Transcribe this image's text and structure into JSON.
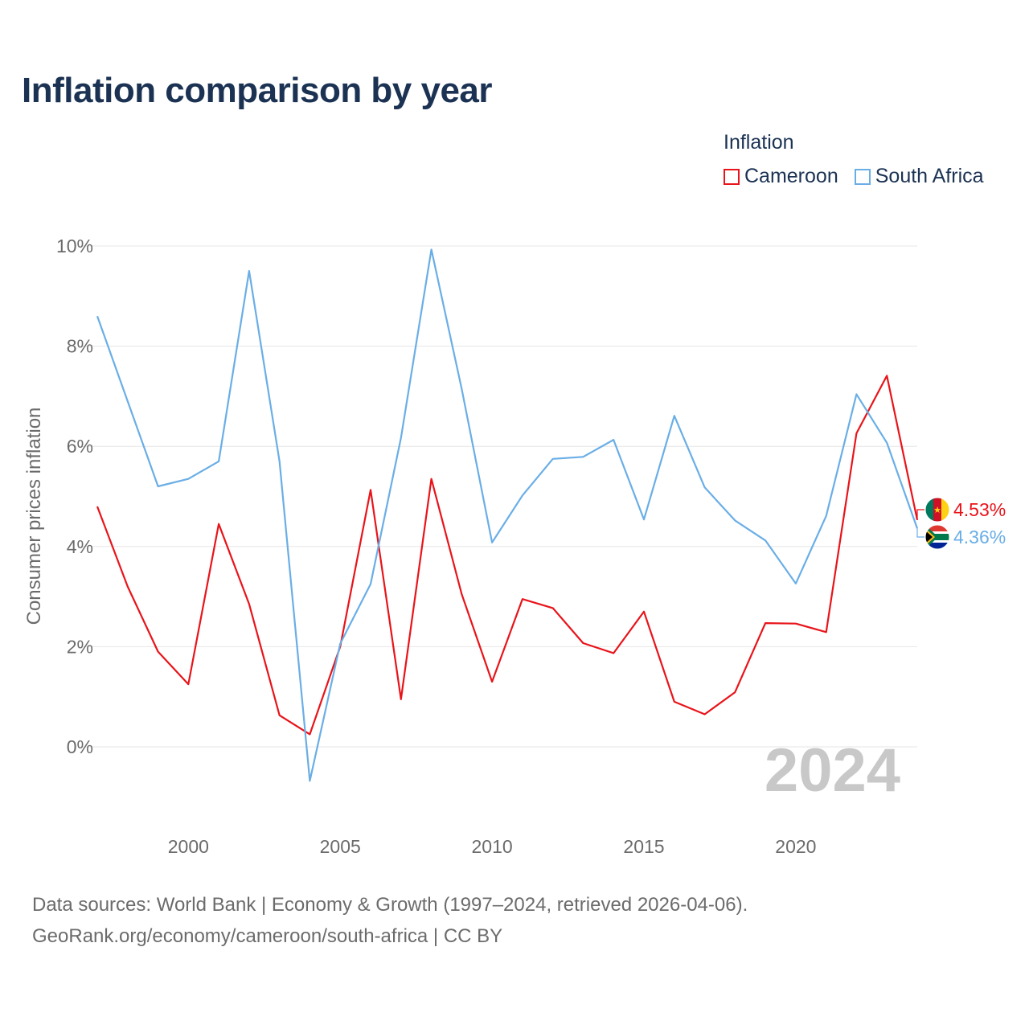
{
  "colors": {
    "cameroon": "#e8141a",
    "south_africa": "#6aaee6",
    "grid": "#e6e6e6",
    "axis_text": "#6b6b6b",
    "watermark": "#c8c8c8",
    "title": "#1b3253"
  },
  "chart_data": {
    "type": "line",
    "title": "Inflation comparison by year",
    "xlabel": "",
    "ylabel": "Consumer prices inflation",
    "legend_title": "Inflation",
    "legend_position": "top-right",
    "grid": true,
    "x": [
      1997,
      1998,
      1999,
      2000,
      2001,
      2002,
      2003,
      2004,
      2005,
      2006,
      2007,
      2008,
      2009,
      2010,
      2011,
      2012,
      2013,
      2014,
      2015,
      2016,
      2017,
      2018,
      2019,
      2020,
      2021,
      2022,
      2023,
      2024
    ],
    "xlim": [
      1997,
      2024
    ],
    "ylim": [
      -1.5,
      10
    ],
    "x_ticks": [
      2000,
      2005,
      2010,
      2015,
      2020
    ],
    "y_ticks": [
      0,
      2,
      4,
      6,
      8,
      10
    ],
    "y_tick_labels": [
      "0%",
      "2%",
      "4%",
      "6%",
      "8%",
      "10%"
    ],
    "series": [
      {
        "key": "cameroon",
        "name": "Cameroon",
        "values": [
          4.8,
          3.2,
          1.9,
          1.25,
          4.45,
          2.85,
          0.63,
          0.25,
          2.0,
          5.13,
          0.95,
          5.35,
          3.05,
          1.3,
          2.95,
          2.77,
          2.07,
          1.87,
          2.7,
          0.9,
          0.65,
          1.09,
          2.47,
          2.46,
          2.29,
          6.26,
          7.41,
          4.53
        ],
        "end_label": "4.53%"
      },
      {
        "key": "south_africa",
        "name": "South Africa",
        "values": [
          8.6,
          6.9,
          5.2,
          5.35,
          5.7,
          9.5,
          5.7,
          -0.68,
          2.06,
          3.25,
          6.17,
          9.93,
          7.15,
          4.08,
          5.02,
          5.75,
          5.79,
          6.13,
          4.54,
          6.61,
          5.18,
          4.52,
          4.12,
          3.26,
          4.61,
          7.04,
          6.07,
          4.36
        ],
        "end_label": "4.36%"
      }
    ],
    "watermark_year": "2024"
  },
  "source": {
    "line1": "Data sources: World Bank | Economy & Growth (1997–2024, retrieved 2026-04-06).",
    "line2": "GeoRank.org/economy/cameroon/south-africa | CC BY"
  }
}
